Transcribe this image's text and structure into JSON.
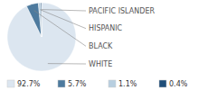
{
  "chart_data": {
    "type": "pie",
    "categories": [
      "WHITE",
      "BLACK",
      "HISPANIC",
      "PACIFIC ISLANDER"
    ],
    "values": [
      92.7,
      5.7,
      1.1,
      0.4
    ],
    "value_labels": [
      "92.7%",
      "5.7%",
      "1.1%",
      "0.4%"
    ],
    "colors": [
      "#dce6f0",
      "#4d7a9e",
      "#b8cfe0",
      "#1f4e79"
    ],
    "legend": "bottom"
  }
}
